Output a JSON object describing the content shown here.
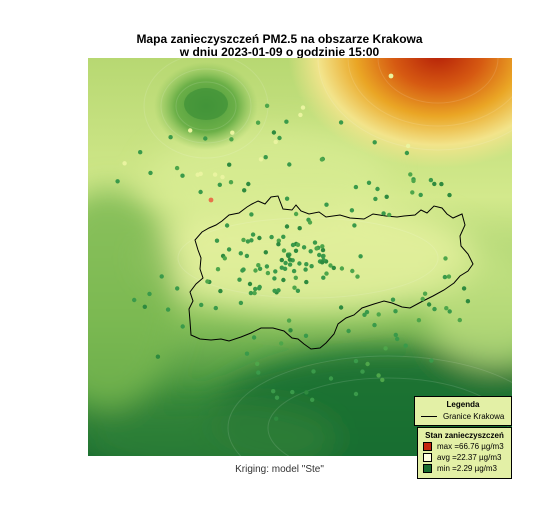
{
  "title": {
    "line1": "Mapa zanieczyszczeń PM2.5 na obszarze Krakowa",
    "line2": "w dniu 2023-01-09 o godzinie 15:00"
  },
  "caption": "Kriging: model \"Ste\"",
  "legend": {
    "heading": "Legenda",
    "boundary_label": "Granice Krakowa"
  },
  "stats": {
    "heading": "Stan zanieczyszczeń",
    "items": [
      {
        "label": "max = ",
        "value": "66.76 µg/m3",
        "color": "#c42410"
      },
      {
        "label": "avg = ",
        "value": "22.37 µg/m3",
        "color": "#ffffdf"
      },
      {
        "label": "min = ",
        "value": "2.29 µg/m3",
        "color": "#1a6d30"
      }
    ]
  },
  "colors": {
    "low": "#0f6b30",
    "mid_low": "#64a944",
    "mid": "#cde887",
    "mid_high": "#f1ef9a",
    "high": "#e9a023",
    "max": "#b7210a",
    "sensor_default": "#3a9a4a",
    "sensor_hot": "#e7734a",
    "sensor_pale": "#eaf4a0",
    "boundary": "#000000"
  }
}
